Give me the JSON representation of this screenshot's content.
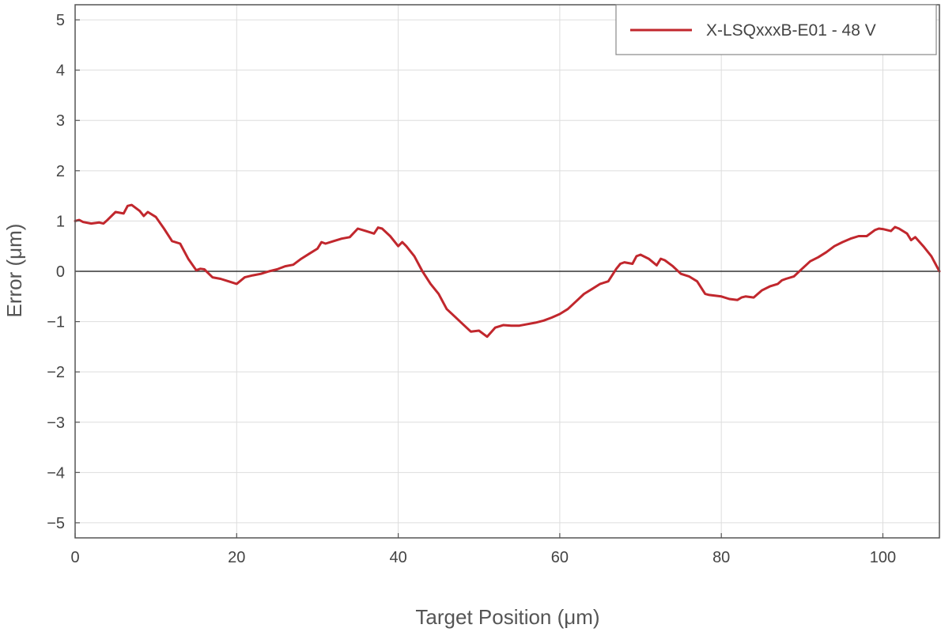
{
  "chart_data": {
    "type": "line",
    "title": "",
    "xlabel": "Target Position (μm)",
    "ylabel": "Error (μm)",
    "xlim": [
      0,
      107
    ],
    "ylim": [
      -5.3,
      5.3
    ],
    "x_ticks": [
      0,
      20,
      40,
      60,
      80,
      100
    ],
    "y_ticks": [
      -5,
      -4,
      -3,
      -2,
      -1,
      0,
      1,
      2,
      3,
      4,
      5
    ],
    "x_tick_labels": [
      "0",
      "20",
      "40",
      "60",
      "80",
      "100"
    ],
    "y_tick_labels": [
      "−5",
      "−4",
      "−3",
      "−2",
      "−1",
      "0",
      "1",
      "2",
      "3",
      "4",
      "5"
    ],
    "grid": true,
    "zero_line": true,
    "legend_position": "top-right",
    "colors": {
      "series": "#c1272d",
      "grid": "#dddddd",
      "zero_line": "#333333"
    },
    "series": [
      {
        "name": "X-LSQxxxB-E01 - 48 V",
        "x": [
          0,
          0.5,
          1,
          2,
          3,
          3.5,
          4,
          5,
          6,
          6.5,
          7,
          8,
          8.5,
          9,
          10,
          11,
          12,
          13,
          14,
          15,
          15.5,
          16,
          17,
          18,
          19,
          20,
          21,
          22,
          23,
          24,
          25,
          26,
          27,
          28,
          29,
          30,
          30.5,
          31,
          32,
          33,
          34,
          35,
          36,
          37,
          37.5,
          38,
          39,
          40,
          40.5,
          41,
          42,
          43,
          44,
          45,
          46,
          47,
          48,
          49,
          50,
          51,
          52,
          53,
          54,
          55,
          56,
          57,
          58,
          59,
          60,
          61,
          62,
          63,
          64,
          65,
          66,
          67,
          67.5,
          68,
          69,
          69.5,
          70,
          71,
          72,
          72.5,
          73,
          74,
          75,
          76,
          77,
          78,
          78.5,
          79,
          80,
          81,
          82,
          82.5,
          83,
          84,
          85,
          86,
          87,
          87.5,
          88,
          89,
          90,
          91,
          92,
          93,
          94,
          95,
          96,
          97,
          98,
          99,
          99.5,
          100,
          101,
          101.5,
          102,
          103,
          103.5,
          104,
          105,
          106,
          107
        ],
        "y": [
          1.0,
          1.02,
          0.98,
          0.95,
          0.97,
          0.95,
          1.02,
          1.18,
          1.15,
          1.3,
          1.32,
          1.2,
          1.1,
          1.18,
          1.08,
          0.85,
          0.6,
          0.55,
          0.25,
          0.02,
          0.05,
          0.04,
          -0.12,
          -0.15,
          -0.2,
          -0.25,
          -0.12,
          -0.08,
          -0.05,
          0.0,
          0.04,
          0.1,
          0.13,
          0.25,
          0.35,
          0.45,
          0.58,
          0.55,
          0.6,
          0.65,
          0.68,
          0.85,
          0.8,
          0.75,
          0.87,
          0.85,
          0.7,
          0.5,
          0.58,
          0.5,
          0.3,
          0.0,
          -0.25,
          -0.45,
          -0.75,
          -0.9,
          -1.05,
          -1.2,
          -1.18,
          -1.3,
          -1.12,
          -1.07,
          -1.08,
          -1.08,
          -1.05,
          -1.02,
          -0.98,
          -0.92,
          -0.85,
          -0.75,
          -0.6,
          -0.45,
          -0.35,
          -0.25,
          -0.2,
          0.05,
          0.15,
          0.18,
          0.15,
          0.3,
          0.33,
          0.25,
          0.12,
          0.25,
          0.22,
          0.1,
          -0.05,
          -0.1,
          -0.2,
          -0.45,
          -0.47,
          -0.48,
          -0.5,
          -0.55,
          -0.57,
          -0.52,
          -0.5,
          -0.52,
          -0.38,
          -0.3,
          -0.25,
          -0.18,
          -0.15,
          -0.1,
          0.05,
          0.2,
          0.28,
          0.38,
          0.5,
          0.58,
          0.65,
          0.7,
          0.7,
          0.82,
          0.85,
          0.84,
          0.8,
          0.88,
          0.85,
          0.75,
          0.62,
          0.68,
          0.5,
          0.3,
          0.0
        ]
      }
    ]
  }
}
